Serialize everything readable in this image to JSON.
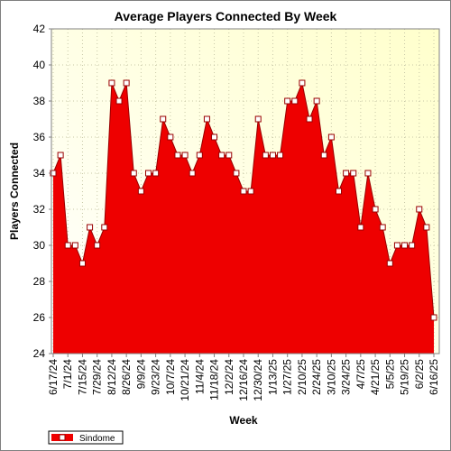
{
  "chart_data": {
    "type": "area",
    "title": "Average Players Connected By Week",
    "xlabel": "Week",
    "ylabel": "Players Connected",
    "ylim": [
      24,
      42
    ],
    "yticks": [
      24,
      26,
      28,
      30,
      32,
      34,
      36,
      38,
      40,
      42
    ],
    "grid": true,
    "legend_position": "bottom-left",
    "colors": {
      "area_fill": "#ee0000",
      "line": "#990000",
      "marker_fill": "#ffffff",
      "marker_stroke": "#990000",
      "plot_background_start": "#ffffff",
      "plot_background_end": "#ffffcc"
    },
    "x_tick_labels": [
      "6/17/24",
      "7/1/24",
      "7/15/24",
      "7/29/24",
      "8/12/24",
      "8/26/24",
      "9/9/24",
      "9/23/24",
      "10/7/24",
      "10/21/24",
      "11/4/24",
      "11/18/24",
      "12/2/24",
      "12/16/24",
      "12/30/24",
      "1/13/25",
      "1/27/25",
      "2/10/25",
      "2/24/25",
      "3/10/25",
      "3/24/25",
      "4/7/25",
      "4/21/25",
      "5/5/25",
      "5/19/25",
      "6/2/25",
      "6/16/25"
    ],
    "series": [
      {
        "name": "Sindome",
        "values": [
          34,
          35,
          30,
          30,
          29,
          31,
          30,
          31,
          39,
          38,
          39,
          34,
          33,
          34,
          34,
          37,
          36,
          35,
          35,
          34,
          35,
          37,
          36,
          35,
          35,
          34,
          33,
          33,
          37,
          35,
          35,
          35,
          38,
          38,
          39,
          37,
          38,
          35,
          36,
          33,
          34,
          34,
          31,
          34,
          32,
          31,
          29,
          30,
          30,
          30,
          32,
          31,
          26
        ]
      }
    ]
  }
}
